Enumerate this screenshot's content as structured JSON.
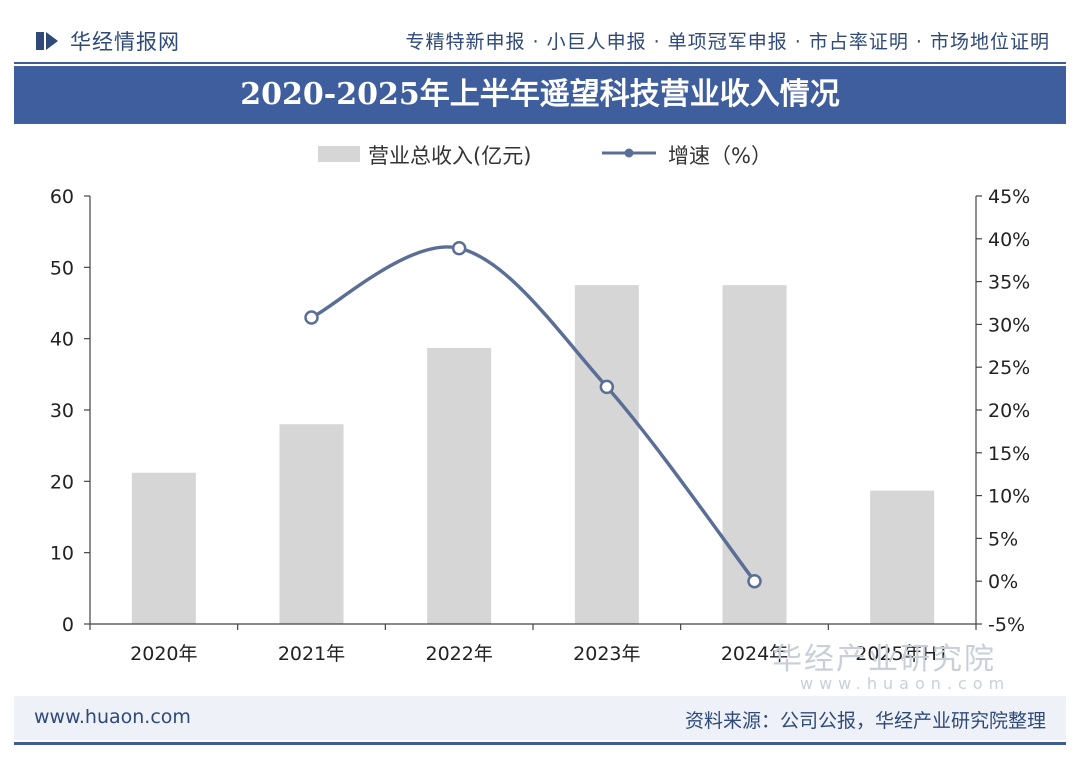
{
  "header": {
    "logo_text": "华经情报网",
    "services": "专精特新申报 · 小巨人申报 · 单项冠军申报 · 市占率证明 · 市场地位证明"
  },
  "colors": {
    "brand": "#3e5e9e",
    "bar": "#d6d6d6",
    "line": "#5b6f96"
  },
  "legend": {
    "bar_label": "营业总收入(亿元)",
    "line_label": "增速（%）"
  },
  "watermark": {
    "text": "华经产业研究院",
    "url": "www.huaon.com"
  },
  "footer": {
    "website": "www.huaon.com",
    "source": "资料来源：公司公报，华经产业研究院整理"
  },
  "chart_data": {
    "type": "bar",
    "title": "2020-2025年上半年遥望科技营业收入情况",
    "categories": [
      "2020年",
      "2021年",
      "2022年",
      "2023年",
      "2024年",
      "2025年H1"
    ],
    "series": [
      {
        "name": "营业总收入(亿元)",
        "type": "bar",
        "axis": "left",
        "values": [
          21.2,
          28.0,
          38.7,
          47.5,
          47.5,
          18.7
        ]
      },
      {
        "name": "增速（%）",
        "type": "line",
        "axis": "right",
        "values": [
          null,
          30.8,
          38.9,
          22.7,
          0.0,
          null
        ]
      }
    ],
    "y_left": {
      "min": 0,
      "max": 60,
      "ticks": [
        0,
        10,
        20,
        30,
        40,
        50,
        60
      ]
    },
    "y_right": {
      "min": -5,
      "max": 45,
      "ticks": [
        -5,
        0,
        5,
        10,
        15,
        20,
        25,
        30,
        35,
        40,
        45
      ],
      "tick_labels": [
        "-5%",
        "0%",
        "5%",
        "10%",
        "15%",
        "20%",
        "25%",
        "30%",
        "35%",
        "40%",
        "45%"
      ]
    },
    "grid": false,
    "legend_position": "top-center"
  }
}
